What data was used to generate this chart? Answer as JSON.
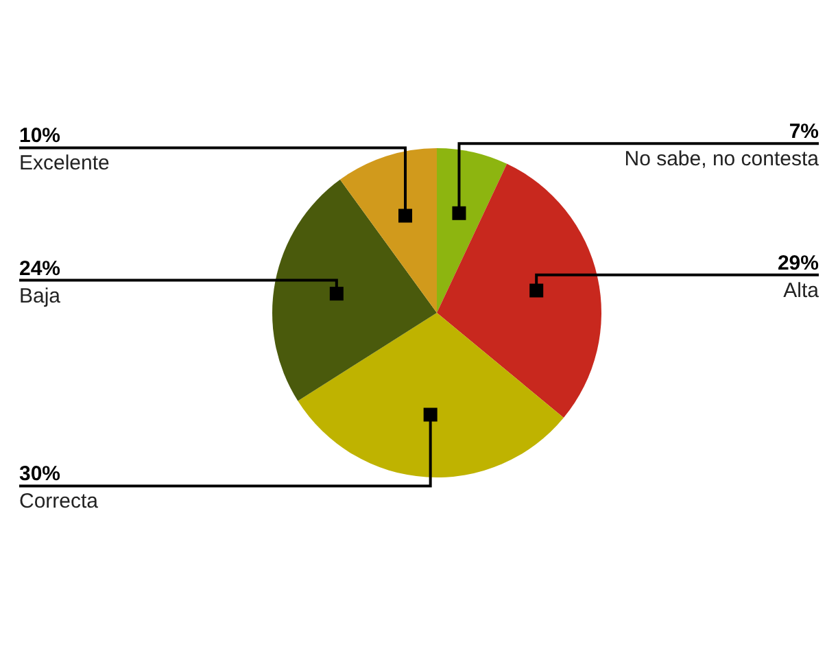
{
  "chart_data": {
    "type": "pie",
    "categories": [
      "No sabe, no contesta",
      "Alta",
      "Correcta",
      "Baja",
      "Excelente"
    ],
    "values": [
      7,
      29,
      30,
      24,
      10
    ],
    "value_labels": [
      "7%",
      "29%",
      "30%",
      "24%",
      "10%"
    ],
    "colors": [
      "#8db510",
      "#c8281e",
      "#bfb300",
      "#4a5a0c",
      "#d19a1c"
    ]
  }
}
